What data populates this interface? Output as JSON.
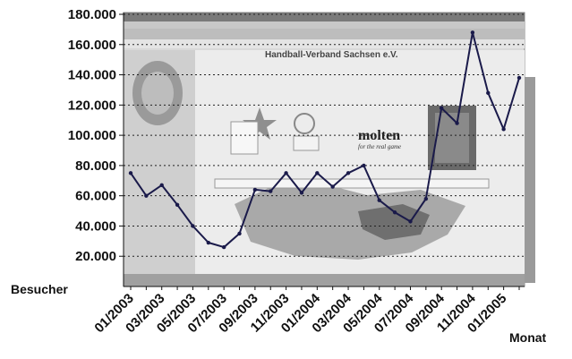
{
  "chart_data": {
    "type": "line",
    "xlabel": "Monat",
    "ylabel": "Besucher",
    "ylim": [
      0,
      180000
    ],
    "yticks": [
      "20.000",
      "40.000",
      "60.000",
      "80.000",
      "100.000",
      "120.000",
      "140.000",
      "160.000",
      "180.000"
    ],
    "ytick_values": [
      20000,
      40000,
      60000,
      80000,
      100000,
      120000,
      140000,
      160000,
      180000
    ],
    "xtick_labels": [
      "01/2003",
      "03/2003",
      "05/2003",
      "07/2003",
      "09/2003",
      "11/2003",
      "01/2004",
      "03/2004",
      "05/2004",
      "07/2004",
      "09/2004",
      "11/2004",
      "01/2005"
    ],
    "grid": "horizontal dotted",
    "line_color": "#1a1a4a",
    "x": [
      "01/2003",
      "02/2003",
      "03/2003",
      "04/2003",
      "05/2003",
      "06/2003",
      "07/2003",
      "08/2003",
      "09/2003",
      "10/2003",
      "11/2003",
      "12/2003",
      "01/2004",
      "02/2004",
      "03/2004",
      "04/2004",
      "05/2004",
      "06/2004",
      "07/2004",
      "08/2004",
      "09/2004",
      "10/2004",
      "11/2004",
      "12/2004",
      "01/2005",
      "02/2005"
    ],
    "values": [
      75000,
      60000,
      67000,
      54000,
      40000,
      29000,
      26000,
      35000,
      64000,
      63000,
      75000,
      62000,
      75000,
      66000,
      75000,
      80000,
      57000,
      49000,
      43000,
      58000,
      118000,
      108000,
      168000,
      128000,
      104000,
      138000
    ],
    "background_screenshot": {
      "title": "Handball-Verband Sachsen e.V.",
      "brand": "molten",
      "tagline": "for the real game"
    }
  }
}
